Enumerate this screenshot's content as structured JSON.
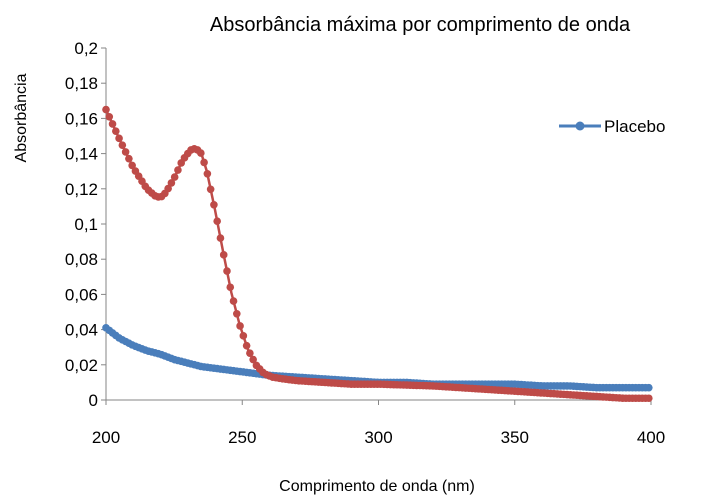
{
  "chart_data": {
    "type": "scatter",
    "title": "Absorbância máxima por comprimento de onda",
    "xlabel": "Comprimento de onda (nm)",
    "ylabel": "Absorbância",
    "xlim": [
      200,
      400
    ],
    "ylim": [
      0,
      0.2
    ],
    "x_ticks": [
      "200",
      "250",
      "300",
      "350",
      "400"
    ],
    "y_ticks": [
      "0",
      "0,02",
      "0,04",
      "0,06",
      "0,08",
      "0,1",
      "0,12",
      "0,14",
      "0,16",
      "0,18",
      "0,2"
    ],
    "grid": false,
    "legend": {
      "position": "right",
      "entries": [
        "Placebo"
      ]
    },
    "series": [
      {
        "name": "Placebo",
        "color": "#4a7ebb",
        "marker": "circle",
        "x": [
          200,
          205,
          210,
          215,
          220,
          225,
          230,
          235,
          240,
          245,
          250,
          255,
          260,
          270,
          280,
          290,
          300,
          310,
          320,
          330,
          340,
          350,
          360,
          370,
          380,
          390,
          400
        ],
        "values": [
          0.041,
          0.035,
          0.031,
          0.028,
          0.026,
          0.023,
          0.021,
          0.019,
          0.018,
          0.017,
          0.016,
          0.015,
          0.014,
          0.013,
          0.012,
          0.011,
          0.01,
          0.01,
          0.009,
          0.009,
          0.009,
          0.009,
          0.008,
          0.008,
          0.007,
          0.007,
          0.007
        ]
      },
      {
        "color": "#be4b48",
        "marker": "circle",
        "x": [
          200,
          205,
          210,
          215,
          218,
          220,
          222,
          225,
          228,
          231,
          233,
          235,
          237,
          240,
          243,
          246,
          249,
          252,
          255,
          258,
          261,
          265,
          270,
          280,
          290,
          300,
          320,
          340,
          360,
          380,
          390,
          400
        ],
        "values": [
          0.165,
          0.148,
          0.132,
          0.12,
          0.116,
          0.115,
          0.118,
          0.126,
          0.136,
          0.142,
          0.143,
          0.14,
          0.13,
          0.108,
          0.084,
          0.061,
          0.043,
          0.029,
          0.02,
          0.015,
          0.013,
          0.012,
          0.011,
          0.01,
          0.009,
          0.009,
          0.008,
          0.006,
          0.004,
          0.002,
          0.001,
          0.001
        ]
      }
    ]
  }
}
